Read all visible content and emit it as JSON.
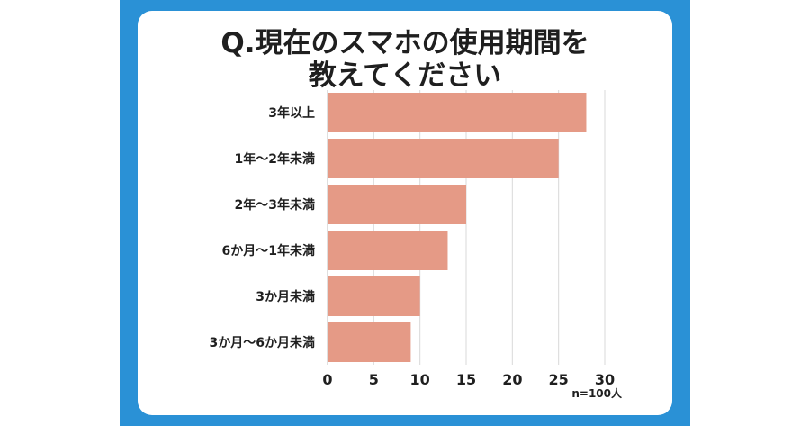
{
  "title_lines": [
    "Q.現在のスマホの使用期間を",
    "教えてください"
  ],
  "note": "n=100人",
  "colors": {
    "frame": "#2a91d6",
    "bar": "#e59a86",
    "grid": "#d9d9d9"
  },
  "chart_data": {
    "type": "bar",
    "orientation": "horizontal",
    "title": "Q.現在のスマホの使用期間を教えてください",
    "categories": [
      "3年以上",
      "1年〜2年未満",
      "2年〜3年未満",
      "6か月〜1年未満",
      "3か月未満",
      "3か月〜6か月未満"
    ],
    "values": [
      28,
      25,
      15,
      13,
      10,
      9
    ],
    "xlim": [
      0,
      30
    ],
    "xticks": [
      0,
      5,
      10,
      15,
      20,
      25,
      30
    ],
    "grid": true
  }
}
